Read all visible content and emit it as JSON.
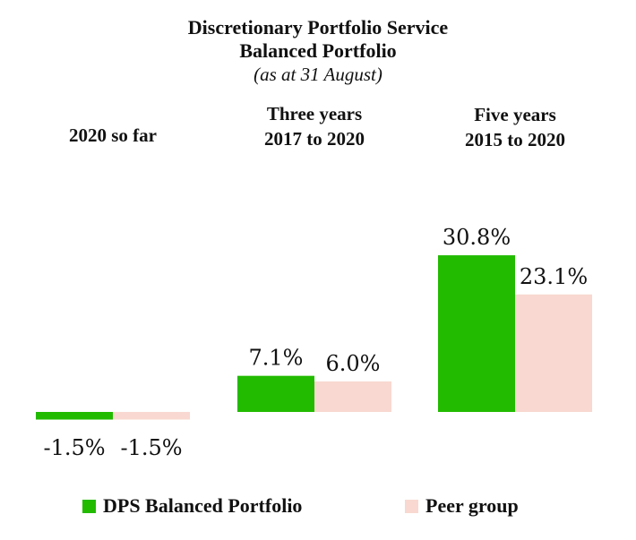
{
  "colors": {
    "dps": "#22bb00",
    "peer": "#f8d8d0"
  },
  "chart_data": {
    "type": "bar",
    "title": "Discretionary Portfolio Service",
    "subtitle": "Balanced Portfolio",
    "note": "(as at 31 August)",
    "categories": [
      [
        "2020 so far"
      ],
      [
        "Three years",
        "2017 to 2020"
      ],
      [
        "Five years",
        "2015 to 2020"
      ]
    ],
    "series": [
      {
        "name": "DPS Balanced Portfolio",
        "values": [
          -1.5,
          7.1,
          30.8
        ]
      },
      {
        "name": "Peer group",
        "values": [
          -1.5,
          6.0,
          23.1
        ]
      }
    ],
    "value_labels": [
      [
        "-1.5%",
        "7.1%",
        "30.8%"
      ],
      [
        "-1.5%",
        "6.0%",
        "23.1%"
      ]
    ],
    "legend_position": "bottom",
    "grid": false
  }
}
